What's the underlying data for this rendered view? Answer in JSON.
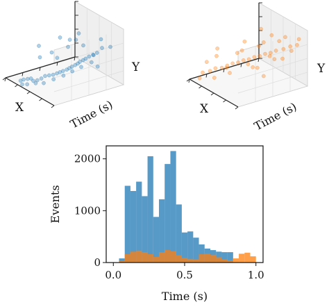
{
  "chart_data": [
    {
      "type": "scatter",
      "projection": "3d",
      "labels": {
        "x": "X",
        "y": "Time (s)",
        "z": "Y"
      },
      "series": [
        {
          "color": "#1f77b4",
          "points": [
            {
              "x": 0.72,
              "t": 0.02,
              "y": 0.08
            },
            {
              "x": 0.7,
              "t": 0.05,
              "y": 0.1
            },
            {
              "x": 0.66,
              "t": 0.08,
              "y": 0.12
            },
            {
              "x": 0.62,
              "t": 0.1,
              "y": 0.14
            },
            {
              "x": 0.6,
              "t": 0.12,
              "y": 0.1
            },
            {
              "x": 0.56,
              "t": 0.15,
              "y": 0.12
            },
            {
              "x": 0.52,
              "t": 0.18,
              "y": 0.16
            },
            {
              "x": 0.5,
              "t": 0.22,
              "y": 0.2
            },
            {
              "x": 0.46,
              "t": 0.25,
              "y": 0.22
            },
            {
              "x": 0.42,
              "t": 0.28,
              "y": 0.24
            },
            {
              "x": 0.4,
              "t": 0.32,
              "y": 0.26
            },
            {
              "x": 0.38,
              "t": 0.35,
              "y": 0.28
            },
            {
              "x": 0.36,
              "t": 0.38,
              "y": 0.3
            },
            {
              "x": 0.34,
              "t": 0.42,
              "y": 0.32
            },
            {
              "x": 0.33,
              "t": 0.45,
              "y": 0.34
            },
            {
              "x": 0.32,
              "t": 0.48,
              "y": 0.36
            },
            {
              "x": 0.31,
              "t": 0.52,
              "y": 0.38
            },
            {
              "x": 0.3,
              "t": 0.55,
              "y": 0.4
            },
            {
              "x": 0.3,
              "t": 0.58,
              "y": 0.42
            },
            {
              "x": 0.29,
              "t": 0.62,
              "y": 0.44
            },
            {
              "x": 0.28,
              "t": 0.65,
              "y": 0.46
            },
            {
              "x": 0.28,
              "t": 0.7,
              "y": 0.48
            },
            {
              "x": 0.27,
              "t": 0.75,
              "y": 0.5
            },
            {
              "x": 0.26,
              "t": 0.8,
              "y": 0.52
            },
            {
              "x": 0.7,
              "t": 0.03,
              "y": 0.02
            },
            {
              "x": 0.64,
              "t": 0.06,
              "y": 0.04
            },
            {
              "x": 0.58,
              "t": 0.14,
              "y": 0.06
            },
            {
              "x": 0.5,
              "t": 0.2,
              "y": 0.08
            },
            {
              "x": 0.44,
              "t": 0.3,
              "y": 0.14
            },
            {
              "x": 0.38,
              "t": 0.4,
              "y": 0.2
            },
            {
              "x": 0.34,
              "t": 0.5,
              "y": 0.26
            },
            {
              "x": 0.3,
              "t": 0.6,
              "y": 0.32
            },
            {
              "x": 0.26,
              "t": 0.72,
              "y": 0.38
            },
            {
              "x": 0.6,
              "t": 0.2,
              "y": 0.7
            },
            {
              "x": 0.45,
              "t": 0.4,
              "y": 0.85
            },
            {
              "x": 0.35,
              "t": 0.6,
              "y": 0.9
            },
            {
              "x": 0.5,
              "t": 0.55,
              "y": 0.6
            },
            {
              "x": 0.25,
              "t": 0.85,
              "y": 0.75
            },
            {
              "x": 0.4,
              "t": 0.7,
              "y": 0.62
            },
            {
              "x": 0.55,
              "t": 0.35,
              "y": 0.55
            },
            {
              "x": 0.3,
              "t": 0.9,
              "y": 0.55
            },
            {
              "x": 0.2,
              "t": 0.95,
              "y": 0.6
            },
            {
              "x": 0.65,
              "t": 0.25,
              "y": 0.45
            },
            {
              "x": 0.48,
              "t": 0.65,
              "y": 0.7
            },
            {
              "x": 0.22,
              "t": 0.78,
              "y": 0.3
            },
            {
              "x": 0.58,
              "t": 0.45,
              "y": 0.4
            },
            {
              "x": 0.36,
              "t": 0.82,
              "y": 0.42
            },
            {
              "x": 0.42,
              "t": 0.52,
              "y": 0.78
            }
          ]
        },
        {
          "color": "#ff7f0e",
          "points": [
            {
              "x": 0.8,
              "t": 0.05,
              "y": 0.2
            },
            {
              "x": 0.72,
              "t": 0.1,
              "y": 0.25
            },
            {
              "x": 0.68,
              "t": 0.15,
              "y": 0.3
            },
            {
              "x": 0.62,
              "t": 0.2,
              "y": 0.32
            },
            {
              "x": 0.58,
              "t": 0.25,
              "y": 0.36
            },
            {
              "x": 0.54,
              "t": 0.3,
              "y": 0.4
            },
            {
              "x": 0.5,
              "t": 0.35,
              "y": 0.42
            },
            {
              "x": 0.46,
              "t": 0.4,
              "y": 0.46
            },
            {
              "x": 0.42,
              "t": 0.45,
              "y": 0.48
            },
            {
              "x": 0.38,
              "t": 0.5,
              "y": 0.52
            },
            {
              "x": 0.34,
              "t": 0.55,
              "y": 0.54
            },
            {
              "x": 0.3,
              "t": 0.6,
              "y": 0.58
            },
            {
              "x": 0.26,
              "t": 0.65,
              "y": 0.6
            },
            {
              "x": 0.22,
              "t": 0.7,
              "y": 0.64
            },
            {
              "x": 0.18,
              "t": 0.78,
              "y": 0.66
            },
            {
              "x": 0.14,
              "t": 0.85,
              "y": 0.7
            },
            {
              "x": 0.1,
              "t": 0.92,
              "y": 0.72
            },
            {
              "x": 0.76,
              "t": 0.08,
              "y": 0.4
            },
            {
              "x": 0.7,
              "t": 0.18,
              "y": 0.5
            },
            {
              "x": 0.6,
              "t": 0.3,
              "y": 0.2
            },
            {
              "x": 0.52,
              "t": 0.42,
              "y": 0.6
            },
            {
              "x": 0.44,
              "t": 0.52,
              "y": 0.3
            },
            {
              "x": 0.36,
              "t": 0.62,
              "y": 0.75
            },
            {
              "x": 0.28,
              "t": 0.72,
              "y": 0.45
            },
            {
              "x": 0.2,
              "t": 0.82,
              "y": 0.85
            },
            {
              "x": 0.66,
              "t": 0.12,
              "y": 0.15
            },
            {
              "x": 0.56,
              "t": 0.38,
              "y": 0.55
            },
            {
              "x": 0.48,
              "t": 0.48,
              "y": 0.35
            },
            {
              "x": 0.4,
              "t": 0.58,
              "y": 0.68
            },
            {
              "x": 0.32,
              "t": 0.68,
              "y": 0.5
            },
            {
              "x": 0.24,
              "t": 0.76,
              "y": 0.78
            },
            {
              "x": 0.16,
              "t": 0.88,
              "y": 0.6
            },
            {
              "x": 0.74,
              "t": 0.22,
              "y": 0.6
            },
            {
              "x": 0.64,
              "t": 0.28,
              "y": 0.28
            },
            {
              "x": 0.58,
              "t": 0.5,
              "y": 0.7
            },
            {
              "x": 0.46,
              "t": 0.6,
              "y": 0.25
            },
            {
              "x": 0.38,
              "t": 0.75,
              "y": 0.82
            },
            {
              "x": 0.3,
              "t": 0.85,
              "y": 0.4
            },
            {
              "x": 0.12,
              "t": 0.96,
              "y": 0.8
            },
            {
              "x": 0.82,
              "t": 0.02,
              "y": 0.1
            },
            {
              "x": 0.5,
              "t": 0.68,
              "y": 0.9
            },
            {
              "x": 0.26,
              "t": 0.55,
              "y": 0.22
            }
          ]
        }
      ]
    },
    {
      "type": "bar",
      "subtype": "histogram",
      "xlabel": "Time (s)",
      "ylabel": "Events",
      "xlim": [
        -0.05,
        1.05
      ],
      "ylim": [
        0,
        2250
      ],
      "xticks": [
        0.0,
        0.5,
        1.0
      ],
      "xtick_labels": [
        "0.0",
        "0.5",
        "1.0"
      ],
      "yticks": [
        0,
        1000,
        2000
      ],
      "ytick_labels": [
        "0",
        "1000",
        "2000"
      ],
      "bin_width": 0.04,
      "series": [
        {
          "color": "#1f77b4",
          "bins": [
            {
              "start": 0.04,
              "value": 80
            },
            {
              "start": 0.08,
              "value": 1480
            },
            {
              "start": 0.12,
              "value": 1380
            },
            {
              "start": 0.16,
              "value": 1560
            },
            {
              "start": 0.2,
              "value": 1280
            },
            {
              "start": 0.24,
              "value": 2050
            },
            {
              "start": 0.28,
              "value": 880
            },
            {
              "start": 0.32,
              "value": 1220
            },
            {
              "start": 0.36,
              "value": 1900
            },
            {
              "start": 0.4,
              "value": 2150
            },
            {
              "start": 0.44,
              "value": 1120
            },
            {
              "start": 0.48,
              "value": 580
            },
            {
              "start": 0.52,
              "value": 600
            },
            {
              "start": 0.56,
              "value": 480
            },
            {
              "start": 0.6,
              "value": 350
            },
            {
              "start": 0.64,
              "value": 270
            },
            {
              "start": 0.68,
              "value": 240
            },
            {
              "start": 0.72,
              "value": 210
            },
            {
              "start": 0.76,
              "value": 200
            },
            {
              "start": 0.8,
              "value": 200
            }
          ]
        },
        {
          "color": "#ff7f0e",
          "bins": [
            {
              "start": 0.04,
              "value": 30
            },
            {
              "start": 0.08,
              "value": 160
            },
            {
              "start": 0.12,
              "value": 210
            },
            {
              "start": 0.16,
              "value": 230
            },
            {
              "start": 0.2,
              "value": 200
            },
            {
              "start": 0.24,
              "value": 160
            },
            {
              "start": 0.28,
              "value": 110
            },
            {
              "start": 0.32,
              "value": 200
            },
            {
              "start": 0.36,
              "value": 240
            },
            {
              "start": 0.4,
              "value": 220
            },
            {
              "start": 0.44,
              "value": 140
            },
            {
              "start": 0.48,
              "value": 90
            },
            {
              "start": 0.52,
              "value": 70
            },
            {
              "start": 0.56,
              "value": 60
            },
            {
              "start": 0.6,
              "value": 160
            },
            {
              "start": 0.64,
              "value": 170
            },
            {
              "start": 0.68,
              "value": 150
            },
            {
              "start": 0.72,
              "value": 100
            },
            {
              "start": 0.76,
              "value": 60
            },
            {
              "start": 0.8,
              "value": 40
            },
            {
              "start": 0.84,
              "value": 80
            },
            {
              "start": 0.88,
              "value": 170
            },
            {
              "start": 0.92,
              "value": 190
            },
            {
              "start": 0.96,
              "value": 120
            }
          ]
        }
      ]
    }
  ]
}
